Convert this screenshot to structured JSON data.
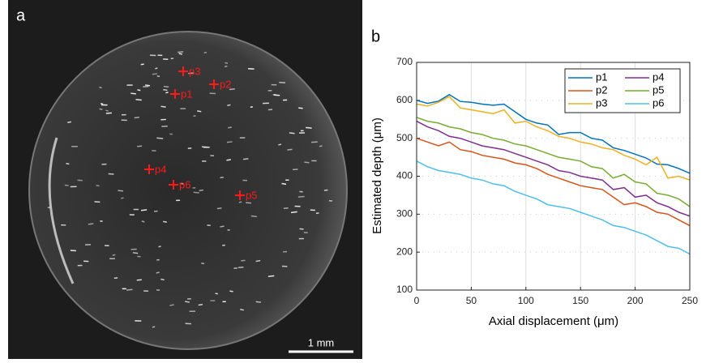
{
  "panel_a": {
    "label": "a",
    "points": [
      "p1",
      "p2",
      "p3",
      "p4",
      "p5",
      "p6"
    ],
    "scale_bar": "1 mm"
  },
  "chart_data": {
    "type": "line",
    "panel_label": "b",
    "xlabel": "Axial displacement (μm)",
    "ylabel": "Estimated depth (μm)",
    "x": [
      0,
      10,
      20,
      30,
      40,
      50,
      60,
      70,
      80,
      90,
      100,
      110,
      120,
      130,
      140,
      150,
      160,
      170,
      180,
      190,
      200,
      210,
      220,
      230,
      240,
      250
    ],
    "series": [
      {
        "name": "p1",
        "color": "#0072BD",
        "values": [
          600,
          592,
          598,
          615,
          597,
          595,
          590,
          587,
          590,
          570,
          550,
          540,
          535,
          510,
          515,
          515,
          500,
          495,
          475,
          468,
          458,
          448,
          432,
          430,
          420,
          408
        ]
      },
      {
        "name": "p2",
        "color": "#D95319",
        "values": [
          500,
          490,
          480,
          490,
          470,
          465,
          455,
          450,
          445,
          435,
          430,
          420,
          405,
          395,
          385,
          375,
          370,
          365,
          345,
          325,
          330,
          320,
          305,
          300,
          285,
          270
        ]
      },
      {
        "name": "p3",
        "color": "#EDB120",
        "values": [
          590,
          585,
          595,
          610,
          580,
          575,
          570,
          565,
          575,
          540,
          545,
          530,
          520,
          505,
          500,
          490,
          485,
          475,
          470,
          455,
          445,
          430,
          450,
          395,
          400,
          390
        ]
      },
      {
        "name": "p4",
        "color": "#7E2F8E",
        "values": [
          545,
          530,
          520,
          505,
          500,
          490,
          480,
          475,
          470,
          460,
          450,
          440,
          430,
          415,
          410,
          400,
          395,
          390,
          365,
          370,
          345,
          350,
          330,
          320,
          305,
          295
        ]
      },
      {
        "name": "p5",
        "color": "#77AC30",
        "values": [
          555,
          545,
          540,
          530,
          525,
          515,
          510,
          500,
          495,
          485,
          480,
          470,
          460,
          450,
          445,
          440,
          425,
          420,
          395,
          405,
          385,
          380,
          355,
          350,
          340,
          320
        ]
      },
      {
        "name": "p6",
        "color": "#4DBEEE",
        "values": [
          440,
          425,
          415,
          410,
          405,
          395,
          390,
          380,
          375,
          360,
          350,
          340,
          325,
          320,
          315,
          305,
          295,
          285,
          270,
          265,
          255,
          245,
          230,
          215,
          210,
          195
        ]
      }
    ],
    "xlim": [
      0,
      250
    ],
    "xticks": [
      0,
      50,
      100,
      150,
      200,
      250
    ],
    "ylim": [
      100,
      700
    ],
    "yticks": [
      100,
      200,
      300,
      400,
      500,
      600,
      700
    ],
    "grid": true,
    "legend": "upper right"
  }
}
